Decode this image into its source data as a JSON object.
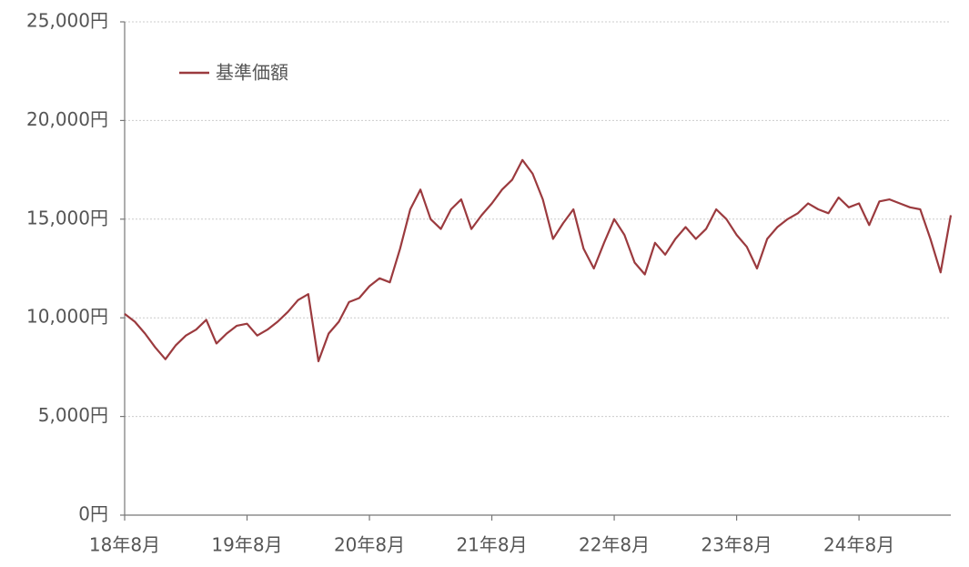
{
  "chart_data": {
    "type": "line",
    "categories": [
      "18年8月",
      null,
      null,
      null,
      null,
      null,
      null,
      null,
      null,
      null,
      null,
      null,
      "19年8月",
      null,
      null,
      null,
      null,
      null,
      null,
      null,
      null,
      null,
      null,
      null,
      "20年8月",
      null,
      null,
      null,
      null,
      null,
      null,
      null,
      null,
      null,
      null,
      null,
      "21年8月",
      null,
      null,
      null,
      null,
      null,
      null,
      null,
      null,
      null,
      null,
      null,
      "22年8月",
      null,
      null,
      null,
      null,
      null,
      null,
      null,
      null,
      null,
      null,
      null,
      "23年8月",
      null,
      null,
      null,
      null,
      null,
      null,
      null,
      null,
      null,
      null,
      null,
      "24年8月",
      null,
      null,
      null,
      null,
      null,
      null,
      null,
      null,
      null
    ],
    "series": [
      {
        "name": "基準価額",
        "color": "#9b3a3e",
        "values": [
          10200,
          9800,
          9200,
          8500,
          7900,
          8600,
          9100,
          9400,
          9900,
          8700,
          9200,
          9600,
          9700,
          9100,
          9400,
          9800,
          10300,
          10900,
          11200,
          7800,
          9200,
          9800,
          10800,
          11000,
          11600,
          12000,
          11800,
          13500,
          15500,
          16500,
          15000,
          14500,
          15500,
          16000,
          14500,
          15200,
          15800,
          16500,
          17000,
          18000,
          17300,
          16000,
          14000,
          14800,
          15500,
          13500,
          12500,
          13800,
          15000,
          14200,
          12800,
          12200,
          13800,
          13200,
          14000,
          14600,
          14000,
          14500,
          15500,
          15000,
          14200,
          13600,
          12500,
          14000,
          14600,
          15000,
          15300,
          15800,
          15500,
          15300,
          16100,
          15600,
          15800,
          14700,
          15900,
          16000,
          15800,
          15600,
          15500,
          14000,
          12300,
          15200
        ]
      }
    ],
    "ylim": [
      0,
      25000
    ],
    "yticks": [
      {
        "value": 0,
        "label": "0円"
      },
      {
        "value": 5000,
        "label": "5,000円"
      },
      {
        "value": 10000,
        "label": "10,000円"
      },
      {
        "value": 15000,
        "label": "15,000円"
      },
      {
        "value": 20000,
        "label": "20,000円"
      },
      {
        "value": 25000,
        "label": "25,000円"
      }
    ],
    "grid": true
  }
}
